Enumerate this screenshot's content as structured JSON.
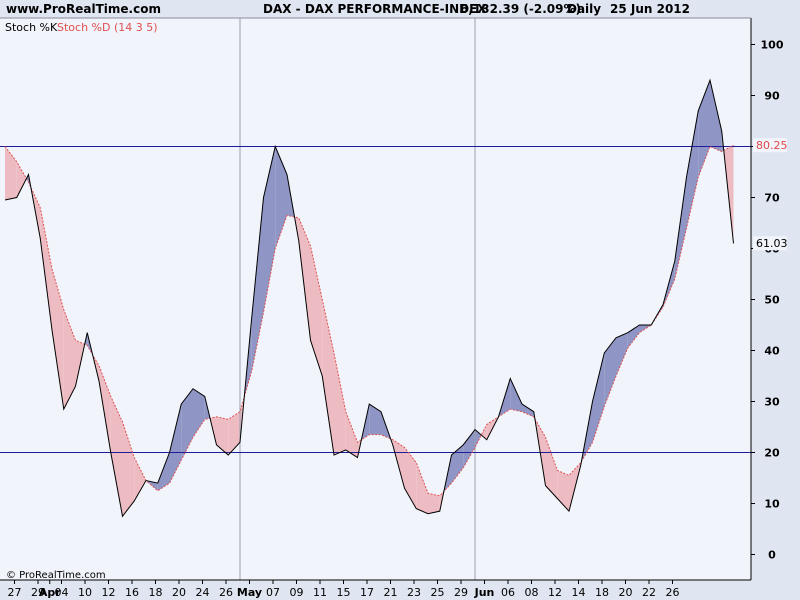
{
  "header": {
    "site": "www.ProRealTime.com",
    "instrument": "DAX - DAX PERFORMANCE-INDEX",
    "quote": "6,132.39 (-2.09%)",
    "period": "Daily",
    "date": "25 Jun 2012"
  },
  "indicator": {
    "k_label": "Stoch %K",
    "d_label": "Stoch %D (14 3 5)"
  },
  "footer": {
    "copyright": "© ProRealTime.com"
  },
  "colors": {
    "background": "#f1f4fa",
    "k_line": "#000000",
    "d_line": "#e05050",
    "fill_k_above": "#8f95c4",
    "fill_d_above": "#edbcc2",
    "level_line": "#1c1c9c",
    "d_value_badge": "#e04848",
    "k_value_badge": "#000000"
  },
  "chart_data": {
    "type": "line",
    "ylim": [
      -5,
      103
    ],
    "y_ticks": [
      0,
      10,
      20,
      30,
      40,
      50,
      60,
      70,
      80,
      90,
      100
    ],
    "x_ticks": [
      {
        "label": "27",
        "idx": 0
      },
      {
        "label": "29",
        "idx": 2
      },
      {
        "label": "Apr",
        "idx": 3,
        "bold": true
      },
      {
        "label": "04",
        "idx": 4
      },
      {
        "label": "10",
        "idx": 6
      },
      {
        "label": "12",
        "idx": 8
      },
      {
        "label": "16",
        "idx": 10
      },
      {
        "label": "18",
        "idx": 12
      },
      {
        "label": "20",
        "idx": 14
      },
      {
        "label": "24",
        "idx": 16
      },
      {
        "label": "26",
        "idx": 18
      },
      {
        "label": "May",
        "idx": 20,
        "bold": true
      },
      {
        "label": "07",
        "idx": 22
      },
      {
        "label": "09",
        "idx": 24
      },
      {
        "label": "11",
        "idx": 26
      },
      {
        "label": "15",
        "idx": 28
      },
      {
        "label": "17",
        "idx": 30
      },
      {
        "label": "21",
        "idx": 32
      },
      {
        "label": "23",
        "idx": 34
      },
      {
        "label": "25",
        "idx": 36
      },
      {
        "label": "29",
        "idx": 38
      },
      {
        "label": "Jun",
        "idx": 40,
        "bold": true
      },
      {
        "label": "06",
        "idx": 42
      },
      {
        "label": "08",
        "idx": 44
      },
      {
        "label": "12",
        "idx": 46
      },
      {
        "label": "14",
        "idx": 48
      },
      {
        "label": "18",
        "idx": 50
      },
      {
        "label": "20",
        "idx": 52
      },
      {
        "label": "22",
        "idx": 54
      },
      {
        "label": "26",
        "idx": 56
      }
    ],
    "vertical_month_lines": [
      20,
      40
    ],
    "levels": [
      20,
      80
    ],
    "series": [
      {
        "name": "Stoch %K",
        "values": [
          69.5,
          70,
          74.5,
          62,
          44,
          28.5,
          33,
          43.5,
          34,
          20,
          7.5,
          10.5,
          14.5,
          14,
          20,
          29.5,
          32.5,
          31,
          21.5,
          19.5,
          22,
          46.5,
          70,
          80,
          74.5,
          61.5,
          42,
          35,
          19.5,
          20.5,
          19,
          29.5,
          28,
          21.5,
          13,
          9,
          8,
          8.5,
          19.5,
          21.5,
          24.5,
          22.5,
          27,
          34.5,
          29.5,
          28,
          13.5,
          11,
          8.5,
          17.5,
          30,
          39.5,
          42.5,
          43.5,
          45,
          45,
          49,
          57.5,
          74,
          87,
          93,
          83,
          61
        ]
      },
      {
        "name": "Stoch %D (14 3 5)",
        "values": [
          80,
          77,
          73,
          68,
          56,
          48,
          42,
          41,
          37,
          31,
          26,
          19,
          14.5,
          12.5,
          14,
          18.5,
          23,
          26.5,
          27,
          26.5,
          28,
          36,
          47.5,
          60,
          66.5,
          66,
          60.5,
          50,
          39.5,
          28,
          22,
          23.5,
          23.5,
          22.5,
          21,
          18,
          12,
          11.5,
          14,
          17,
          21,
          25.5,
          27,
          28.5,
          28,
          27,
          23,
          16.5,
          15.5,
          18,
          22,
          29,
          35,
          40.5,
          43.5,
          45,
          48.5,
          54,
          64,
          74,
          80,
          79,
          80.25
        ]
      }
    ],
    "last_values": {
      "d": "80.25",
      "k": "61.03"
    }
  }
}
